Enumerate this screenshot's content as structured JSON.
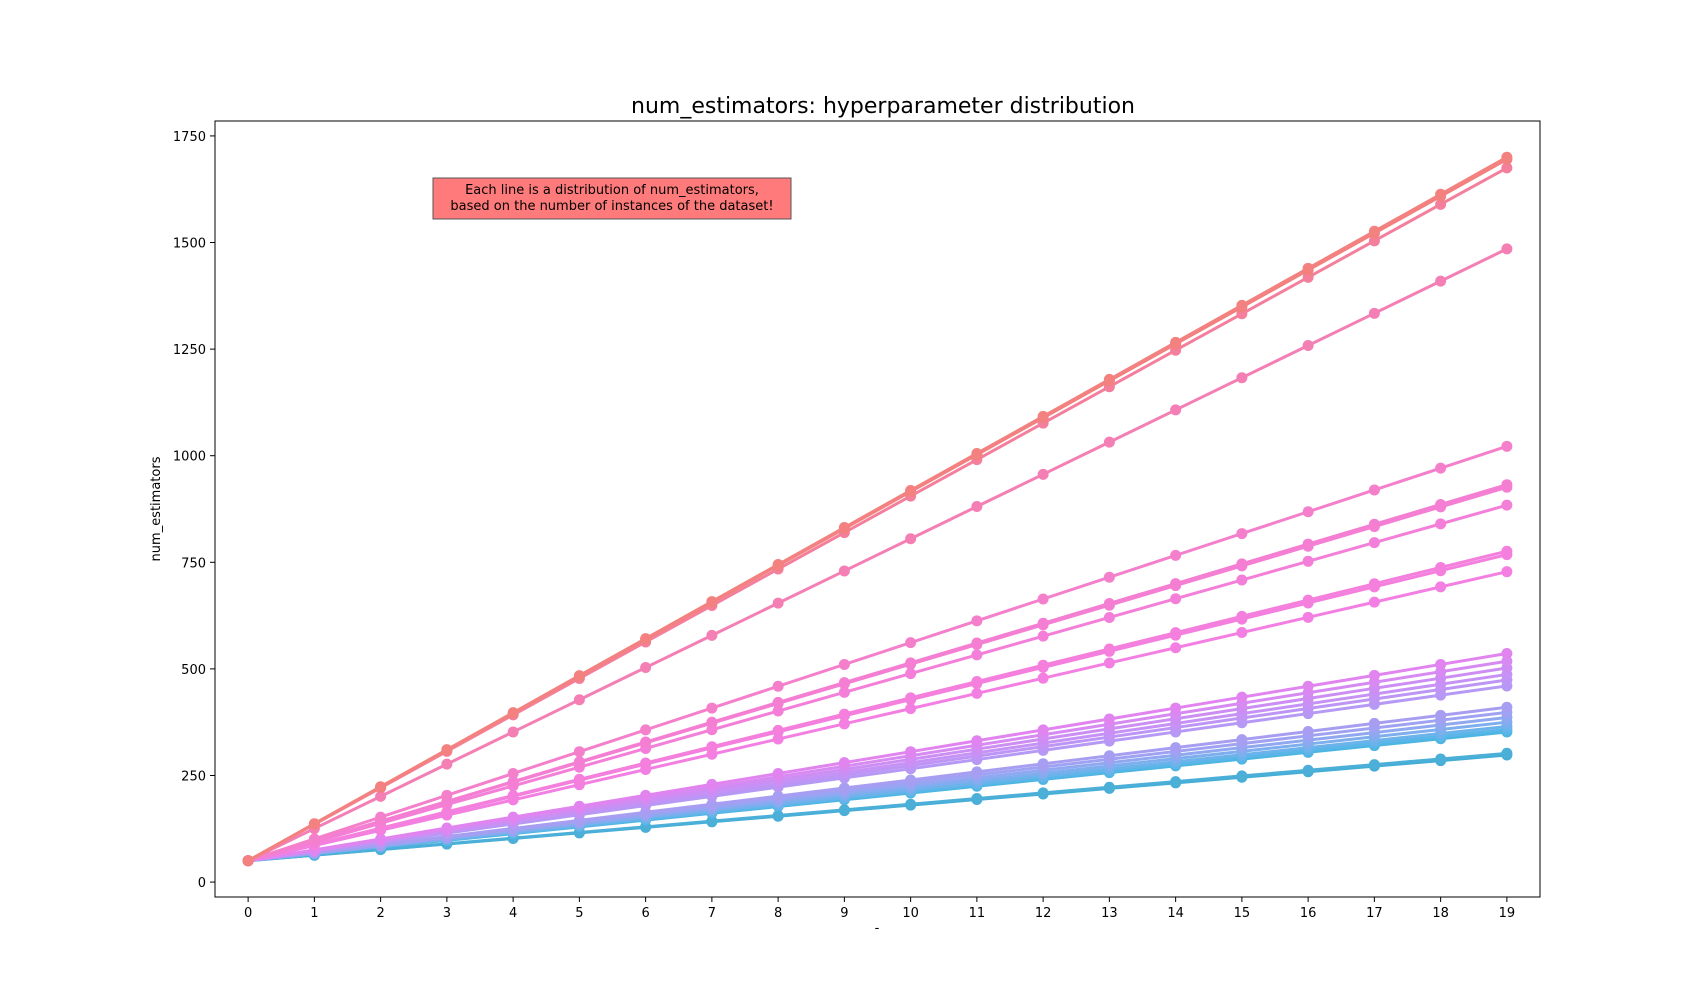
{
  "chart_data": {
    "type": "line",
    "title": "num_estimators: hyperparameter distribution",
    "xlabel": "-",
    "ylabel": "num_estimators",
    "x": [
      0,
      1,
      2,
      3,
      4,
      5,
      6,
      7,
      8,
      9,
      10,
      11,
      12,
      13,
      14,
      15,
      16,
      17,
      18,
      19
    ],
    "xlim": [
      -0.5,
      19.5
    ],
    "ylim": [
      -35,
      1785
    ],
    "yticks": [
      0,
      250,
      500,
      750,
      1000,
      1250,
      1500,
      1750
    ],
    "grid": false,
    "marker": "circle",
    "annotation": {
      "lines": [
        "Each line is a distribution of num_estimators,",
        "based on the number of instances of the dataset!"
      ],
      "background": "#ff7b7b"
    },
    "series": [
      {
        "start": 50,
        "end": 1700,
        "color": "#f2817f"
      },
      {
        "start": 50,
        "end": 1695,
        "color": "#f2807f"
      },
      {
        "start": 50,
        "end": 1675,
        "color": "#f47f9d"
      },
      {
        "start": 50,
        "end": 1485,
        "color": "#f47fb5"
      },
      {
        "start": 50,
        "end": 1022,
        "color": "#f47fcb"
      },
      {
        "start": 50,
        "end": 932,
        "color": "#f47fd2"
      },
      {
        "start": 50,
        "end": 926,
        "color": "#f47fd4"
      },
      {
        "start": 50,
        "end": 884,
        "color": "#f47fd8"
      },
      {
        "start": 50,
        "end": 776,
        "color": "#f47fdc"
      },
      {
        "start": 50,
        "end": 768,
        "color": "#f47fdf"
      },
      {
        "start": 50,
        "end": 728,
        "color": "#f47fe2"
      },
      {
        "start": 50,
        "end": 536,
        "color": "#e184f0"
      },
      {
        "start": 50,
        "end": 518,
        "color": "#d68af2"
      },
      {
        "start": 50,
        "end": 502,
        "color": "#cd8ef4"
      },
      {
        "start": 50,
        "end": 487,
        "color": "#c692f5"
      },
      {
        "start": 50,
        "end": 474,
        "color": "#bd95f5"
      },
      {
        "start": 50,
        "end": 460,
        "color": "#b599f4"
      },
      {
        "start": 50,
        "end": 410,
        "color": "#a79ef2"
      },
      {
        "start": 50,
        "end": 398,
        "color": "#9fa2f2"
      },
      {
        "start": 50,
        "end": 386,
        "color": "#8fa8f0"
      },
      {
        "start": 50,
        "end": 375,
        "color": "#7eaeee"
      },
      {
        "start": 50,
        "end": 365,
        "color": "#6bb3ea"
      },
      {
        "start": 50,
        "end": 358,
        "color": "#5ab6e8"
      },
      {
        "start": 50,
        "end": 352,
        "color": "#4eb5e2"
      },
      {
        "start": 50,
        "end": 302,
        "color": "#4bafd8"
      },
      {
        "start": 50,
        "end": 298,
        "color": "#42aed6"
      }
    ]
  }
}
